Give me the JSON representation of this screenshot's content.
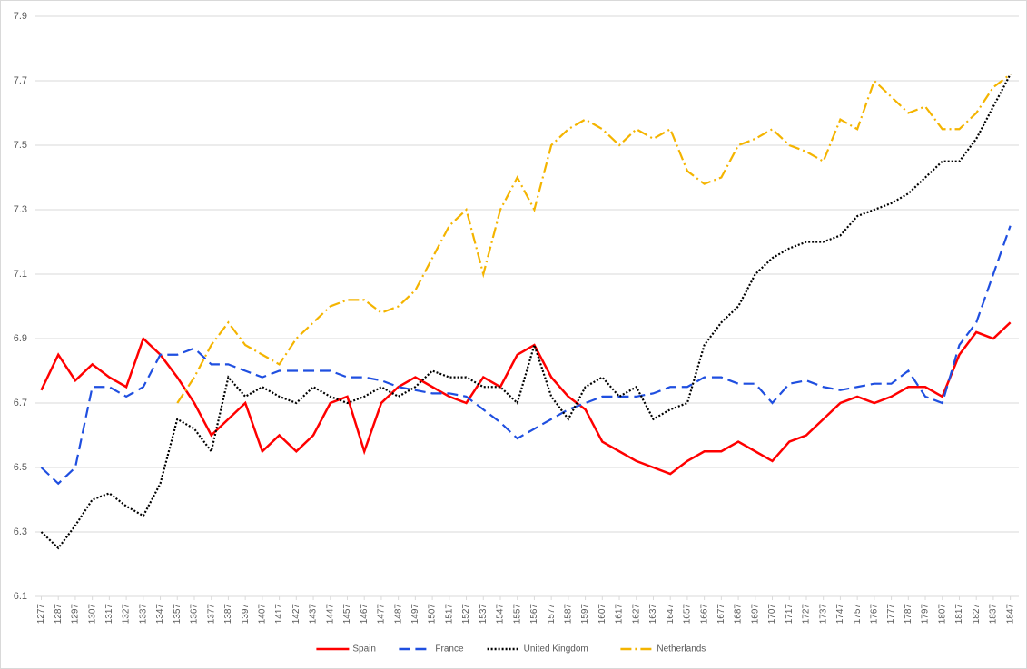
{
  "chart_data": {
    "type": "line",
    "x": [
      1277,
      1287,
      1297,
      1307,
      1317,
      1327,
      1337,
      1347,
      1357,
      1367,
      1377,
      1387,
      1397,
      1407,
      1417,
      1427,
      1437,
      1447,
      1457,
      1467,
      1477,
      1487,
      1497,
      1507,
      1517,
      1527,
      1537,
      1547,
      1557,
      1567,
      1577,
      1587,
      1597,
      1607,
      1617,
      1627,
      1637,
      1647,
      1657,
      1667,
      1677,
      1687,
      1697,
      1707,
      1717,
      1727,
      1737,
      1747,
      1757,
      1767,
      1777,
      1787,
      1797,
      1807,
      1817,
      1827,
      1837,
      1847
    ],
    "xlim": [
      1273,
      1852
    ],
    "xticks": [
      1277,
      1287,
      1297,
      1307,
      1317,
      1327,
      1337,
      1347,
      1357,
      1367,
      1377,
      1387,
      1397,
      1407,
      1417,
      1427,
      1437,
      1447,
      1457,
      1467,
      1477,
      1487,
      1497,
      1507,
      1517,
      1527,
      1537,
      1547,
      1557,
      1567,
      1577,
      1587,
      1597,
      1607,
      1617,
      1627,
      1637,
      1647,
      1657,
      1667,
      1677,
      1687,
      1697,
      1707,
      1717,
      1727,
      1737,
      1747,
      1757,
      1767,
      1777,
      1787,
      1797,
      1807,
      1817,
      1827,
      1837,
      1847
    ],
    "ylim": [
      6.1,
      7.9
    ],
    "yticks": [
      6.1,
      6.3,
      6.5,
      6.7,
      6.9,
      7.1,
      7.3,
      7.5,
      7.7,
      7.9
    ],
    "grid": true,
    "legend": "bottom",
    "series": [
      {
        "name": "Spain",
        "color": "#ff0000",
        "dash": "solid",
        "values": [
          6.74,
          6.85,
          6.77,
          6.82,
          6.78,
          6.75,
          6.9,
          6.85,
          6.78,
          6.7,
          6.6,
          6.65,
          6.7,
          6.55,
          6.6,
          6.55,
          6.6,
          6.7,
          6.72,
          6.55,
          6.7,
          6.75,
          6.78,
          6.75,
          6.72,
          6.7,
          6.78,
          6.75,
          6.85,
          6.88,
          6.78,
          6.72,
          6.68,
          6.58,
          6.55,
          6.52,
          6.5,
          6.48,
          6.52,
          6.55,
          6.55,
          6.58,
          6.55,
          6.52,
          6.58,
          6.6,
          6.65,
          6.7,
          6.72,
          6.7,
          6.72,
          6.75,
          6.75,
          6.72,
          6.85,
          6.92,
          6.9,
          6.95
        ]
      },
      {
        "name": "France",
        "color": "#1f4fe0",
        "dash": "dashed",
        "values": [
          6.5,
          6.45,
          6.5,
          6.75,
          6.75,
          6.72,
          6.75,
          6.85,
          6.85,
          6.87,
          6.82,
          6.82,
          6.8,
          6.78,
          6.8,
          6.8,
          6.8,
          6.8,
          6.78,
          6.78,
          6.77,
          6.75,
          6.74,
          6.73,
          6.73,
          6.72,
          6.68,
          6.64,
          6.59,
          6.62,
          6.65,
          6.68,
          6.7,
          6.72,
          6.72,
          6.72,
          6.73,
          6.75,
          6.75,
          6.78,
          6.78,
          6.76,
          6.76,
          6.7,
          6.76,
          6.77,
          6.75,
          6.74,
          6.75,
          6.76,
          6.76,
          6.8,
          6.72,
          6.7,
          6.88,
          6.95,
          7.1,
          7.25
        ]
      },
      {
        "name": "United Kingdom",
        "color": "#000000",
        "dash": "dotted",
        "values": [
          6.3,
          6.25,
          6.32,
          6.4,
          6.42,
          6.38,
          6.35,
          6.45,
          6.65,
          6.62,
          6.55,
          6.78,
          6.72,
          6.75,
          6.72,
          6.7,
          6.75,
          6.72,
          6.7,
          6.72,
          6.75,
          6.72,
          6.75,
          6.8,
          6.78,
          6.78,
          6.75,
          6.75,
          6.7,
          6.88,
          6.72,
          6.65,
          6.75,
          6.78,
          6.72,
          6.75,
          6.65,
          6.68,
          6.7,
          6.88,
          6.95,
          7.0,
          7.1,
          7.15,
          7.18,
          7.2,
          7.2,
          7.22,
          7.28,
          7.3,
          7.32,
          7.35,
          7.4,
          7.45,
          7.45,
          7.52,
          7.62,
          7.72
        ]
      },
      {
        "name": "Netherlands",
        "color": "#f4b400",
        "dash": "dashdot",
        "values": [
          null,
          null,
          null,
          null,
          null,
          null,
          null,
          null,
          6.7,
          6.78,
          6.88,
          6.95,
          6.88,
          6.85,
          6.82,
          6.9,
          6.95,
          7.0,
          7.02,
          7.02,
          6.98,
          7.0,
          7.05,
          7.15,
          7.25,
          7.3,
          7.1,
          7.3,
          7.4,
          7.3,
          7.5,
          7.55,
          7.58,
          7.55,
          7.5,
          7.55,
          7.52,
          7.55,
          7.42,
          7.38,
          7.4,
          7.5,
          7.52,
          7.55,
          7.5,
          7.48,
          7.45,
          7.58,
          7.55,
          7.7,
          7.65,
          7.6,
          7.62,
          7.55,
          7.55,
          7.6,
          7.68,
          7.72
        ]
      }
    ]
  }
}
